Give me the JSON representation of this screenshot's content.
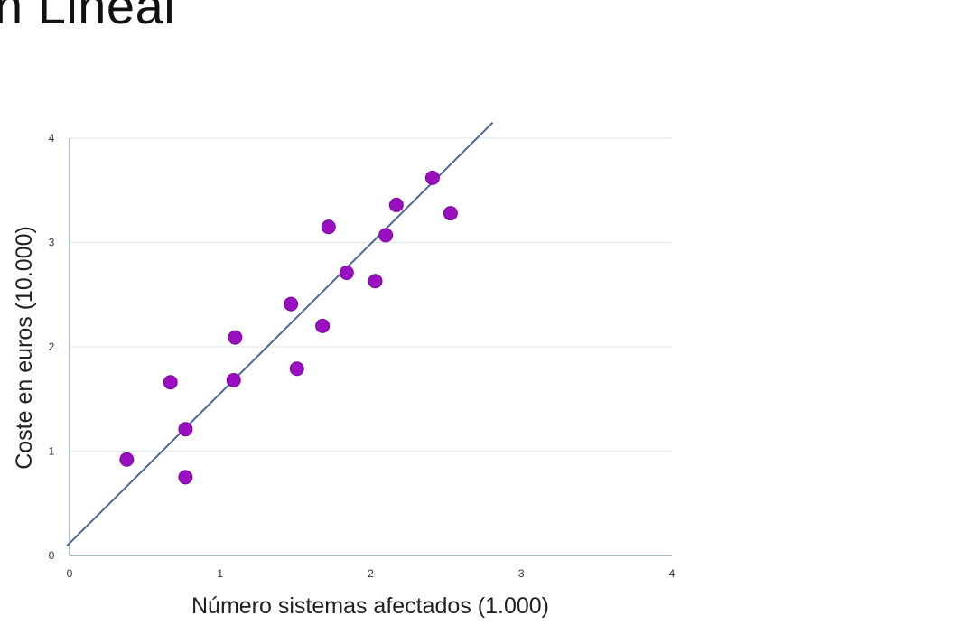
{
  "slide": {
    "title": "n Lineal"
  },
  "chart_data": {
    "type": "scatter",
    "title": "",
    "xlabel": "Número sistemas afectados (1.000)",
    "ylabel": "Coste en euros (10.000)",
    "xlim": [
      0,
      4
    ],
    "ylim": [
      0,
      4
    ],
    "x_ticks": [
      "0",
      "1",
      "2",
      "3",
      "4"
    ],
    "y_ticks": [
      "0",
      "1",
      "2",
      "3",
      "4"
    ],
    "grid": "horizontal",
    "legend": "none",
    "series": [
      {
        "color": "#9a0fc0",
        "points": [
          {
            "x": 0.38,
            "y": 0.92
          },
          {
            "x": 0.67,
            "y": 1.66
          },
          {
            "x": 0.77,
            "y": 1.21
          },
          {
            "x": 0.77,
            "y": 0.75
          },
          {
            "x": 1.09,
            "y": 1.68
          },
          {
            "x": 1.1,
            "y": 2.09
          },
          {
            "x": 1.47,
            "y": 2.41
          },
          {
            "x": 1.51,
            "y": 1.79
          },
          {
            "x": 1.68,
            "y": 2.2
          },
          {
            "x": 1.72,
            "y": 3.15
          },
          {
            "x": 1.84,
            "y": 2.71
          },
          {
            "x": 2.03,
            "y": 2.63
          },
          {
            "x": 2.1,
            "y": 3.07
          },
          {
            "x": 2.17,
            "y": 3.36
          },
          {
            "x": 2.41,
            "y": 3.62
          },
          {
            "x": 2.53,
            "y": 3.28
          }
        ]
      }
    ],
    "trendline": {
      "color": "#4a6694",
      "from": {
        "x": 0.0,
        "y": 0.1
      },
      "to": {
        "x": 2.81,
        "y": 4.15
      }
    },
    "gridline_color": "#dbe6ea"
  }
}
